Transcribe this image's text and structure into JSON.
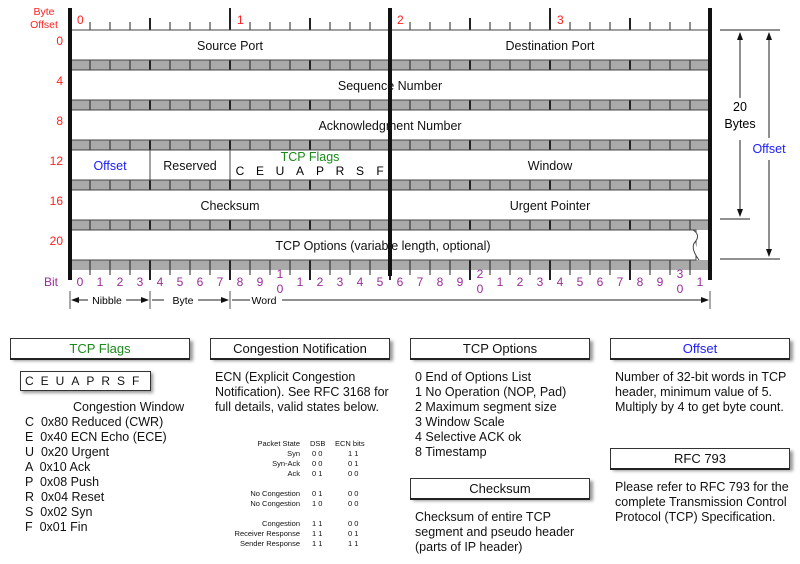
{
  "colors": {
    "byte": "#ff2020",
    "bit": "#992d99",
    "offset": "#1a1aff",
    "flags": "#1a8a1a"
  },
  "header": {
    "byte_offset_label": "Byte Offset",
    "bit_label": "Bit",
    "byte_numbers": [
      "0",
      "1",
      "2",
      "3"
    ],
    "row_offsets": [
      "0",
      "4",
      "8",
      "12",
      "16",
      "20"
    ],
    "bit_labels": [
      "0",
      "1",
      "2",
      "3",
      "4",
      "5",
      "6",
      "7",
      "8",
      "9",
      "1\n0",
      "1",
      "2",
      "3",
      "4",
      "5",
      "6",
      "7",
      "8",
      "9",
      "2\n0",
      "1",
      "2",
      "3",
      "4",
      "5",
      "6",
      "7",
      "8",
      "9",
      "3\n0",
      "1"
    ]
  },
  "fields": {
    "source_port": "Source Port",
    "destination_port": "Destination Port",
    "sequence_number": "Sequence Number",
    "ack_number": "Acknowledgment Number",
    "offset": "Offset",
    "reserved": "Reserved",
    "tcp_flags": "TCP Flags",
    "flag_letters": "C E U A P R S F",
    "window": "Window",
    "checksum": "Checksum",
    "urgent_pointer": "Urgent Pointer",
    "options": "TCP Options (variable length, optional)"
  },
  "scale": {
    "nibble": "Nibble",
    "byte": "Byte",
    "word": "Word",
    "bytes20": "20",
    "bytes20_unit": "Bytes",
    "offset": "Offset"
  },
  "flags_section": {
    "title": "TCP Flags",
    "letters": "CEUAPRSF",
    "window_title": "Congestion Window",
    "items": [
      "C  0x80 Reduced (CWR)",
      "E  0x40 ECN Echo (ECE)",
      "U  0x20 Urgent",
      "A  0x10 Ack",
      "P  0x08 Push",
      "R  0x04 Reset",
      "S  0x02 Syn",
      "F  0x01 Fin"
    ]
  },
  "congestion": {
    "title": "Congestion Notification",
    "text": "ECN (Explicit Congestion Notification).  See RFC 3168 for full details, valid states below.",
    "table_headers": [
      "Packet State",
      "DSB",
      "ECN bits"
    ],
    "rows": [
      [
        "Syn",
        "0 0",
        "1 1"
      ],
      [
        "Syn-Ack",
        "0 0",
        "0 1"
      ],
      [
        "Ack",
        "0 1",
        "0 0"
      ],
      [
        "No Congestion",
        "0 1",
        "0 0"
      ],
      [
        "No Congestion",
        "1 0",
        "0 0"
      ],
      [
        "Congestion",
        "1 1",
        "0 0"
      ],
      [
        "Receiver Response",
        "1 1",
        "0 1"
      ],
      [
        "Sender Response",
        "1 1",
        "1 1"
      ]
    ]
  },
  "options_section": {
    "title": "TCP Options",
    "items": [
      "0 End of Options List",
      "1 No Operation (NOP, Pad)",
      "2 Maximum segment size",
      "3 Window Scale",
      "4 Selective ACK ok",
      "8 Timestamp"
    ]
  },
  "checksum_section": {
    "title": "Checksum",
    "text": "Checksum of entire TCP segment and pseudo header (parts of IP header)"
  },
  "offset_section": {
    "title": "Offset",
    "text": "Number of 32-bit words in TCP header, minimum value of 5.  Multiply by 4 to get byte count."
  },
  "rfc_section": {
    "title": "RFC 793",
    "text": "Please refer to RFC 793 for the complete Transmission Control Protocol (TCP) Specification."
  }
}
